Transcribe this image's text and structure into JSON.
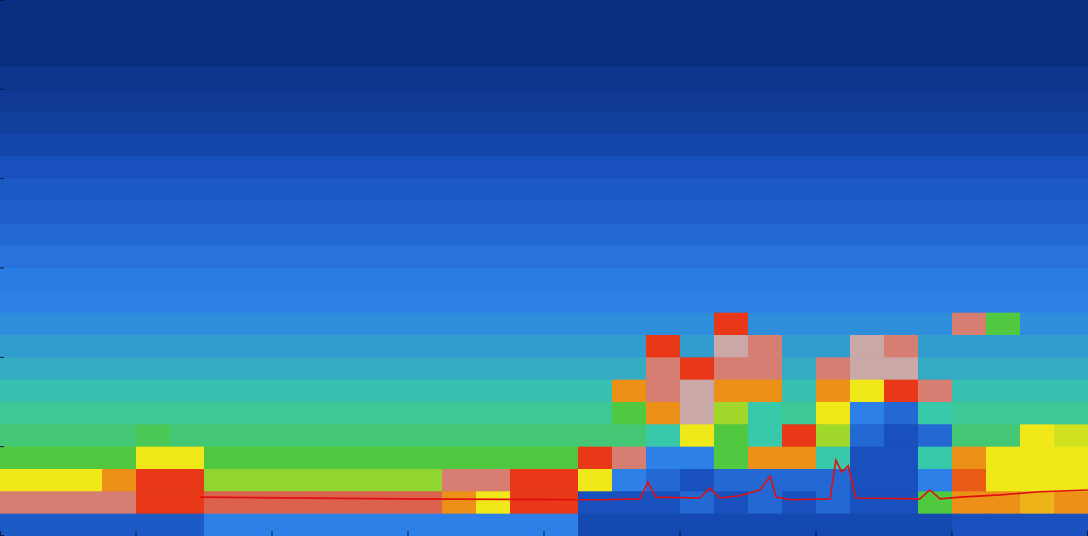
{
  "chart_data": {
    "type": "heatmap",
    "xlim": [
      0,
      24
    ],
    "ylim": [
      0,
      12
    ],
    "xticks": [
      0,
      3,
      6,
      9,
      12,
      15,
      18,
      21,
      24
    ],
    "yticks": [
      0,
      2,
      4,
      6,
      8,
      10,
      12
    ],
    "tick_labels": false,
    "color_range": [
      0,
      7
    ],
    "x": [
      0.375,
      1.125,
      1.875,
      2.625,
      3.375,
      4.125,
      4.875,
      5.625,
      6.375,
      7.125,
      7.875,
      8.625,
      9.375,
      10.125,
      10.875,
      11.625,
      12.375,
      13.125,
      13.875,
      14.625,
      15.375,
      16.125,
      16.875,
      17.625,
      18.375,
      19.125,
      19.875,
      20.625,
      21.375,
      22.125,
      22.875,
      23.625
    ],
    "y": [
      11.75,
      11.25,
      10.75,
      10.25,
      9.75,
      9.25,
      8.75,
      8.25,
      7.75,
      7.25,
      6.75,
      6.25,
      5.75,
      5.25,
      4.75,
      4.25,
      3.75,
      3.25,
      2.75,
      2.25,
      1.75,
      1.25,
      0.75,
      0.25
    ],
    "values": [
      [
        0,
        0,
        0,
        0,
        0,
        0,
        0,
        0,
        0,
        0,
        0,
        0,
        0,
        0,
        0,
        0,
        0,
        0,
        0,
        0,
        0,
        0,
        0,
        0,
        0,
        0,
        0,
        0,
        0,
        0,
        0,
        0
      ],
      [
        0,
        0,
        0,
        0,
        0,
        0,
        0,
        0,
        0,
        0,
        0,
        0,
        0,
        0,
        0,
        0,
        0,
        0,
        0,
        0,
        0,
        0,
        0,
        0,
        0,
        0,
        0,
        0,
        0,
        0,
        0,
        0
      ],
      [
        0,
        0,
        0,
        0,
        0,
        0,
        0,
        0,
        0,
        0,
        0,
        0,
        0,
        0,
        0,
        0,
        0,
        0,
        0,
        0,
        0,
        0,
        0,
        0,
        0,
        0,
        0,
        0,
        0,
        0,
        0,
        0
      ],
      [
        0.2,
        0.2,
        0.2,
        0.2,
        0.2,
        0.2,
        0.2,
        0.2,
        0.2,
        0.2,
        0.2,
        0.2,
        0.2,
        0.2,
        0.2,
        0.2,
        0.2,
        0.2,
        0.2,
        0.2,
        0.2,
        0.2,
        0.2,
        0.2,
        0.2,
        0.2,
        0.2,
        0.2,
        0.2,
        0.2,
        0.2,
        0.2
      ],
      [
        0.3,
        0.3,
        0.3,
        0.3,
        0.3,
        0.3,
        0.3,
        0.3,
        0.3,
        0.3,
        0.3,
        0.3,
        0.3,
        0.3,
        0.3,
        0.3,
        0.3,
        0.3,
        0.3,
        0.3,
        0.3,
        0.3,
        0.3,
        0.3,
        0.3,
        0.3,
        0.3,
        0.3,
        0.3,
        0.3,
        0.3,
        0.3
      ],
      [
        0.5,
        0.5,
        0.5,
        0.5,
        0.5,
        0.5,
        0.5,
        0.5,
        0.5,
        0.5,
        0.5,
        0.5,
        0.5,
        0.5,
        0.5,
        0.5,
        0.5,
        0.5,
        0.5,
        0.5,
        0.5,
        0.5,
        0.5,
        0.5,
        0.5,
        0.5,
        0.5,
        0.5,
        0.5,
        0.5,
        0.5,
        0.5
      ],
      [
        0.7,
        0.7,
        0.7,
        0.7,
        0.7,
        0.7,
        0.7,
        0.7,
        0.7,
        0.7,
        0.7,
        0.7,
        0.7,
        0.7,
        0.7,
        0.7,
        0.7,
        0.7,
        0.7,
        0.7,
        0.7,
        0.7,
        0.7,
        0.7,
        0.7,
        0.7,
        0.7,
        0.7,
        0.7,
        0.7,
        0.7,
        0.7
      ],
      [
        1,
        1,
        1,
        1,
        1,
        1,
        1,
        1,
        1,
        1,
        1,
        1,
        1,
        1,
        1,
        1,
        1,
        1,
        1,
        1,
        1,
        1,
        1,
        1,
        1,
        1,
        1,
        1,
        1,
        1,
        1,
        1
      ],
      [
        1.2,
        1.2,
        1.2,
        1.2,
        1.2,
        1.2,
        1.2,
        1.2,
        1.2,
        1.2,
        1.2,
        1.2,
        1.2,
        1.2,
        1.2,
        1.2,
        1.2,
        1.2,
        1.2,
        1.2,
        1.2,
        1.2,
        1.2,
        1.2,
        1.2,
        1.2,
        1.2,
        1.2,
        1.2,
        1.2,
        1.2,
        1.2
      ],
      [
        1.3,
        1.3,
        1.3,
        1.3,
        1.3,
        1.3,
        1.3,
        1.3,
        1.3,
        1.3,
        1.3,
        1.3,
        1.3,
        1.3,
        1.3,
        1.3,
        1.3,
        1.3,
        1.3,
        1.3,
        1.3,
        1.3,
        1.3,
        1.3,
        1.3,
        1.3,
        1.3,
        1.3,
        1.3,
        1.3,
        1.3,
        1.3
      ],
      [
        1.5,
        1.5,
        1.5,
        1.5,
        1.5,
        1.5,
        1.5,
        1.5,
        1.5,
        1.5,
        1.5,
        1.5,
        1.5,
        1.5,
        1.5,
        1.5,
        1.5,
        1.5,
        1.5,
        1.5,
        1.5,
        1.5,
        1.5,
        1.5,
        1.5,
        1.5,
        1.5,
        1.5,
        1.5,
        1.5,
        1.5,
        1.5
      ],
      [
        1.7,
        1.7,
        1.7,
        1.7,
        1.7,
        1.7,
        1.7,
        1.7,
        1.7,
        1.7,
        1.7,
        1.7,
        1.7,
        1.7,
        1.7,
        1.7,
        1.7,
        1.7,
        1.7,
        1.7,
        1.7,
        1.7,
        1.7,
        1.7,
        1.7,
        1.7,
        1.7,
        1.7,
        1.7,
        1.7,
        1.7,
        1.7
      ],
      [
        1.9,
        1.9,
        1.9,
        1.9,
        1.9,
        1.9,
        1.9,
        1.9,
        1.9,
        1.9,
        1.9,
        1.9,
        1.9,
        1.9,
        1.9,
        1.9,
        1.9,
        1.9,
        1.9,
        1.9,
        1.9,
        1.9,
        1.9,
        1.9,
        1.9,
        1.9,
        1.9,
        1.9,
        1.9,
        1.9,
        1.9,
        1.9
      ],
      [
        2,
        2,
        2,
        2,
        2,
        2,
        2,
        2,
        2,
        2,
        2,
        2,
        2,
        2,
        2,
        2,
        2,
        2,
        2,
        2,
        2,
        2,
        2,
        2,
        2,
        2,
        2,
        2,
        2,
        2,
        2,
        2
      ],
      [
        2.2,
        2.2,
        2.2,
        2.2,
        2.2,
        2.2,
        2.2,
        2.2,
        2.2,
        2.2,
        2.2,
        2.2,
        2.2,
        2.2,
        2.2,
        2.2,
        2.2,
        2.2,
        2.2,
        2.2,
        2.2,
        6,
        2.2,
        2.2,
        2.2,
        2.2,
        2.2,
        2.2,
        6.5,
        4,
        2.2,
        2.2
      ],
      [
        2.4,
        2.4,
        2.4,
        2.4,
        2.4,
        2.4,
        2.4,
        2.4,
        2.4,
        2.4,
        2.4,
        2.4,
        2.4,
        2.4,
        2.4,
        2.4,
        2.4,
        2.4,
        2.4,
        6,
        2.4,
        6.8,
        6.5,
        2.4,
        2.4,
        6.8,
        6.5,
        2.4,
        2.4,
        2.4,
        2.4,
        2.4
      ],
      [
        2.6,
        2.6,
        2.6,
        2.6,
        2.6,
        2.6,
        2.6,
        2.6,
        2.6,
        2.6,
        2.6,
        2.6,
        2.6,
        2.6,
        2.6,
        2.6,
        2.6,
        2.6,
        2.6,
        6.5,
        6,
        6.5,
        6.5,
        2.6,
        6.5,
        6.8,
        6.8,
        2.6,
        2.6,
        2.6,
        2.6,
        2.6
      ],
      [
        2.9,
        2.9,
        2.9,
        2.9,
        2.9,
        2.9,
        2.9,
        2.9,
        2.9,
        2.9,
        2.9,
        2.9,
        2.9,
        2.9,
        2.9,
        2.9,
        2.9,
        2.9,
        5.5,
        6.5,
        6.8,
        5.5,
        5.5,
        2.9,
        5.5,
        5,
        6,
        6.5,
        2.9,
        2.9,
        2.9,
        2.9
      ],
      [
        3.2,
        3.2,
        3.2,
        3.2,
        3.2,
        3.2,
        3.2,
        3.2,
        3.2,
        3.2,
        3.2,
        3.2,
        3.2,
        3.2,
        3.2,
        3.2,
        3.2,
        3.2,
        4,
        5.5,
        6.8,
        4.5,
        3,
        3.2,
        5,
        2,
        1.5,
        3,
        3.2,
        3.2,
        3.2,
        3.2
      ],
      [
        3.5,
        3.5,
        3.5,
        3.5,
        3.8,
        3.5,
        3.5,
        3.5,
        3.5,
        3.5,
        3.5,
        3.5,
        3.5,
        3.5,
        3.5,
        3.5,
        3.5,
        3.5,
        3.5,
        3,
        5,
        4,
        3,
        6,
        4.5,
        1.5,
        1,
        1.5,
        3.5,
        3.5,
        5,
        4.8
      ],
      [
        4,
        4,
        4,
        4,
        5,
        5,
        4,
        4,
        4,
        4,
        4,
        4,
        4,
        4,
        4,
        4,
        4,
        6,
        6.5,
        2,
        2,
        4,
        5.5,
        5.5,
        3,
        1,
        1,
        3,
        5.5,
        5,
        5,
        5
      ],
      [
        5,
        5,
        5,
        5.5,
        6,
        6,
        4.4,
        4.4,
        4.4,
        4.4,
        4.4,
        4.4,
        4.4,
        6.5,
        6.5,
        6,
        6,
        5,
        2,
        1.5,
        1,
        1.5,
        1.5,
        1.5,
        1.5,
        1,
        1,
        2,
        5.8,
        5,
        5,
        5
      ],
      [
        6.5,
        6.5,
        6.5,
        6.5,
        6,
        6,
        6.3,
        6.3,
        6.3,
        6.3,
        6.3,
        6.3,
        6.3,
        5.5,
        5,
        6,
        6,
        1,
        1,
        1,
        1.5,
        1,
        1.5,
        1,
        1.5,
        1,
        1,
        4,
        5.5,
        5.5,
        5.3,
        5.5
      ],
      [
        1.2,
        1.2,
        1.2,
        1.2,
        1.2,
        1.2,
        2,
        2,
        2,
        2,
        2,
        2,
        2,
        2,
        2,
        2,
        2,
        0.8,
        0.8,
        0.8,
        0.8,
        0.8,
        0.8,
        0.8,
        0.8,
        0.8,
        0.8,
        0.8,
        1,
        1,
        1,
        1
      ]
    ],
    "line": {
      "color": "#e01010",
      "x": [
        4.41,
        8.82,
        13.24,
        14.12,
        14.29,
        14.47,
        15.44,
        15.66,
        15.88,
        16.32,
        16.76,
        16.99,
        17.12,
        17.43,
        18.31,
        18.44,
        18.57,
        18.71,
        18.88,
        20.29,
        20.51,
        20.74,
        21.18,
        22.06,
        22.94,
        24
      ],
      "values": [
        0.87,
        0.83,
        0.81,
        0.83,
        1.21,
        0.87,
        0.85,
        1.07,
        0.85,
        0.9,
        1.03,
        1.34,
        0.87,
        0.81,
        0.83,
        1.7,
        1.43,
        1.57,
        0.85,
        0.83,
        1.03,
        0.83,
        0.87,
        0.92,
        0.99,
        1.03
      ]
    }
  }
}
